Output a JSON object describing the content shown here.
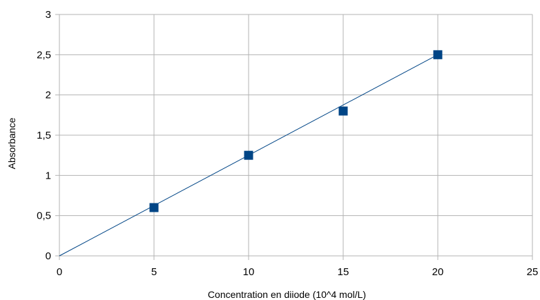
{
  "chart_data": {
    "type": "scatter",
    "title": "",
    "xlabel": "Concentration en diiode (10^4 mol/L)",
    "ylabel": "Absorbance",
    "xlim": [
      0,
      25
    ],
    "ylim": [
      0,
      3
    ],
    "x_ticks": [
      0,
      5,
      10,
      15,
      20,
      25
    ],
    "y_ticks": [
      0,
      0.5,
      1,
      1.5,
      2,
      2.5,
      3
    ],
    "x_tick_labels": [
      "0",
      "5",
      "10",
      "15",
      "20",
      "25"
    ],
    "y_tick_labels": [
      "0",
      "0,5",
      "1",
      "1,5",
      "2",
      "2,5",
      "3"
    ],
    "grid": true,
    "legend": "none",
    "series": [
      {
        "x": [
          5,
          10,
          15,
          20
        ],
        "y": [
          0.6,
          1.25,
          1.8,
          2.5
        ],
        "marker": "square",
        "color": "#004586"
      }
    ],
    "trendline": {
      "type": "linear",
      "x": [
        0,
        20
      ],
      "y": [
        0,
        2.5
      ],
      "color": "#004586"
    }
  }
}
